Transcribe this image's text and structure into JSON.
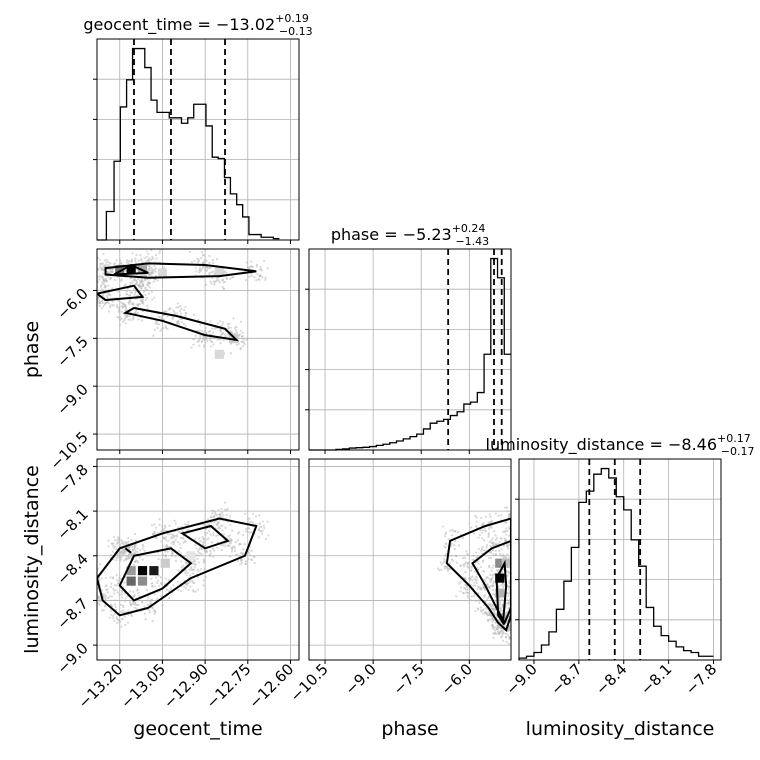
{
  "chart_data": {
    "type": "corner",
    "grid": true,
    "parameters": [
      {
        "name": "geocent_time",
        "xlabel": "geocent_time",
        "title_main": "geocent_time = −13.02",
        "title_plus": "+0.19",
        "title_minus": "−0.13",
        "median": -13.02,
        "lower_quantile": -13.15,
        "upper_quantile": -12.83,
        "range": [
          -13.28,
          -12.57
        ],
        "ticks": [
          -13.2,
          -13.05,
          -12.9,
          -12.75,
          -12.6
        ],
        "tick_labels": [
          "−13.20",
          "−13.05",
          "−12.90",
          "−12.75",
          "−12.60"
        ],
        "histogram": {
          "edges": [
            -13.28,
            -13.247,
            -13.22,
            -13.198,
            -13.176,
            -13.155,
            -13.133,
            -13.112,
            -13.09,
            -13.069,
            -13.047,
            -13.026,
            -13.004,
            -12.983,
            -12.961,
            -12.94,
            -12.918,
            -12.897,
            -12.875,
            -12.854,
            -12.832,
            -12.811,
            -12.789,
            -12.768,
            -12.746,
            -12.725,
            -12.703,
            -12.682,
            -12.66,
            -12.639
          ],
          "counts": [
            0,
            0.21,
            0.58,
            0.98,
            1.18,
            1.41,
            1.41,
            1.27,
            1.03,
            0.94,
            0.94,
            0.9,
            0.9,
            0.86,
            0.9,
            1.0,
            1.0,
            0.84,
            0.61,
            0.6,
            0.46,
            0.34,
            0.26,
            0.17,
            0.04,
            0.04,
            0.02,
            0.02,
            0.01
          ]
        }
      },
      {
        "name": "phase",
        "xlabel": "phase",
        "ylabel": "phase",
        "title_main": "phase = −5.23",
        "title_plus": "+0.24",
        "title_minus": "−1.43",
        "median": -5.23,
        "lower_quantile": -6.66,
        "upper_quantile": -4.99,
        "range": [
          -11.0,
          -4.7
        ],
        "ticks": [
          -10.5,
          -9.0,
          -7.5,
          -6.0
        ],
        "tick_labels": [
          "−10.5",
          "−9.0",
          "−7.5",
          "−6.0"
        ],
        "histogram": {
          "edges": [
            -11.0,
            -10.79,
            -10.58,
            -10.37,
            -10.16,
            -9.95,
            -9.74,
            -9.53,
            -9.32,
            -9.11,
            -8.9,
            -8.69,
            -8.48,
            -8.27,
            -8.06,
            -7.85,
            -7.64,
            -7.43,
            -7.22,
            -7.01,
            -6.8,
            -6.59,
            -6.38,
            -6.17,
            -5.96,
            -5.75,
            -5.54,
            -5.33,
            -5.12,
            -4.91,
            -4.7
          ],
          "counts": [
            0,
            0,
            0,
            0,
            0.003,
            0.006,
            0.01,
            0.012,
            0.014,
            0.018,
            0.024,
            0.03,
            0.038,
            0.047,
            0.058,
            0.07,
            0.083,
            0.11,
            0.14,
            0.15,
            0.16,
            0.18,
            0.2,
            0.24,
            0.25,
            0.3,
            0.5,
            1.0,
            0.9,
            0.5
          ]
        }
      },
      {
        "name": "luminosity_distance",
        "xlabel": "luminosity_distance",
        "ylabel": "luminosity_distance",
        "title_main": "luminosity_distance = −8.46",
        "title_plus": "+0.17",
        "title_minus": "−0.17",
        "median": -8.46,
        "lower_quantile": -8.63,
        "upper_quantile": -8.29,
        "range": [
          -9.1,
          -7.75
        ],
        "ticks": [
          -9.0,
          -8.7,
          -8.4,
          -8.1,
          -7.8
        ],
        "tick_labels": [
          "−9.0",
          "−8.7",
          "−8.4",
          "−8.1",
          "−7.8"
        ],
        "histogram": {
          "edges": [
            -9.1,
            -9.05,
            -9.0,
            -8.95,
            -8.9,
            -8.85,
            -8.8,
            -8.75,
            -8.7,
            -8.65,
            -8.6,
            -8.55,
            -8.5,
            -8.45,
            -8.4,
            -8.35,
            -8.3,
            -8.25,
            -8.2,
            -8.15,
            -8.1,
            -8.05,
            -8.0,
            -7.95,
            -7.9,
            -7.85,
            -7.8
          ],
          "counts": [
            0.01,
            0.02,
            0.04,
            0.08,
            0.15,
            0.27,
            0.42,
            0.6,
            0.84,
            0.9,
            0.99,
            1.02,
            0.97,
            0.87,
            0.8,
            0.64,
            0.5,
            0.28,
            0.18,
            0.13,
            0.1,
            0.07,
            0.05,
            0.04,
            0.02,
            0.02
          ]
        }
      }
    ],
    "pairs": [
      {
        "x": "geocent_time",
        "y": "phase",
        "density_cells": [
          {
            "x": -13.2,
            "y": -5.35,
            "level": 0.55
          },
          {
            "x": -13.16,
            "y": -5.35,
            "level": 1.0
          },
          {
            "x": -13.12,
            "y": -5.35,
            "level": 0.35
          },
          {
            "x": -13.05,
            "y": -5.45,
            "level": 0.15
          },
          {
            "x": -12.85,
            "y": -5.4,
            "level": 0.15
          },
          {
            "x": -12.8,
            "y": -7.5,
            "level": 0.2
          },
          {
            "x": -12.85,
            "y": -8.0,
            "level": 0.15
          }
        ],
        "contours": [
          [
            [
              -13.25,
              -5.3
            ],
            [
              -13.1,
              -5.15
            ],
            [
              -12.9,
              -5.2
            ],
            [
              -12.72,
              -5.4
            ],
            [
              -12.85,
              -5.55
            ],
            [
              -13.1,
              -5.6
            ],
            [
              -13.25,
              -5.5
            ]
          ],
          [
            [
              -13.22,
              -5.5
            ],
            [
              -13.16,
              -5.2
            ],
            [
              -13.1,
              -5.45
            ]
          ],
          [
            [
              -13.28,
              -6.1
            ],
            [
              -13.15,
              -5.85
            ],
            [
              -13.12,
              -6.2
            ],
            [
              -13.25,
              -6.3
            ]
          ],
          [
            [
              -13.15,
              -6.55
            ],
            [
              -13.0,
              -6.8
            ],
            [
              -12.83,
              -7.2
            ],
            [
              -12.79,
              -7.55
            ],
            [
              -12.9,
              -7.4
            ],
            [
              -13.05,
              -6.95
            ],
            [
              -13.18,
              -6.7
            ]
          ]
        ]
      },
      {
        "x": "geocent_time",
        "y": "luminosity_distance",
        "density_cells": [
          {
            "x": -13.16,
            "y": -8.5,
            "level": 0.4
          },
          {
            "x": -13.12,
            "y": -8.5,
            "level": 1.0
          },
          {
            "x": -13.08,
            "y": -8.5,
            "level": 0.9
          },
          {
            "x": -13.16,
            "y": -8.57,
            "level": 0.6
          },
          {
            "x": -13.12,
            "y": -8.57,
            "level": 0.45
          },
          {
            "x": -13.04,
            "y": -8.45,
            "level": 0.2
          },
          {
            "x": -12.95,
            "y": -8.4,
            "level": 0.1
          }
        ],
        "contours": [
          [
            [
              -13.28,
              -8.55
            ],
            [
              -13.2,
              -8.35
            ],
            [
              -13.05,
              -8.25
            ],
            [
              -12.85,
              -8.15
            ],
            [
              -12.72,
              -8.2
            ],
            [
              -12.76,
              -8.4
            ],
            [
              -12.95,
              -8.55
            ],
            [
              -13.1,
              -8.75
            ],
            [
              -13.2,
              -8.8
            ],
            [
              -13.26,
              -8.7
            ]
          ],
          [
            [
              -13.2,
              -8.6
            ],
            [
              -13.15,
              -8.4
            ],
            [
              -13.02,
              -8.35
            ],
            [
              -12.95,
              -8.45
            ],
            [
              -13.05,
              -8.62
            ],
            [
              -13.15,
              -8.7
            ]
          ],
          [
            [
              -12.98,
              -8.25
            ],
            [
              -12.88,
              -8.2
            ],
            [
              -12.82,
              -8.3
            ],
            [
              -12.9,
              -8.35
            ]
          ],
          [
            [
              -13.18,
              -8.35
            ],
            [
              -13.16,
              -8.38
            ]
          ]
        ]
      },
      {
        "x": "phase",
        "y": "luminosity_distance",
        "density_cells": [
          {
            "x": -5.05,
            "y": -8.55,
            "level": 1.0
          },
          {
            "x": -5.05,
            "y": -8.45,
            "level": 0.45
          },
          {
            "x": -4.85,
            "y": -8.45,
            "level": 0.25
          },
          {
            "x": -5.05,
            "y": -8.65,
            "level": 0.3
          }
        ],
        "contours": [
          [
            [
              -4.7,
              -8.15
            ],
            [
              -5.5,
              -8.2
            ],
            [
              -6.6,
              -8.3
            ],
            [
              -6.7,
              -8.45
            ],
            [
              -6.0,
              -8.6
            ],
            [
              -5.4,
              -8.75
            ],
            [
              -5.1,
              -8.85
            ],
            [
              -4.85,
              -8.9
            ],
            [
              -4.7,
              -8.8
            ]
          ],
          [
            [
              -4.7,
              -8.3
            ],
            [
              -5.3,
              -8.35
            ],
            [
              -5.9,
              -8.45
            ],
            [
              -5.5,
              -8.6
            ],
            [
              -5.15,
              -8.75
            ],
            [
              -4.9,
              -8.85
            ],
            [
              -4.7,
              -8.75
            ]
          ],
          [
            [
              -4.9,
              -8.45
            ],
            [
              -5.15,
              -8.55
            ],
            [
              -5.1,
              -8.8
            ],
            [
              -4.95,
              -8.85
            ],
            [
              -4.85,
              -8.6
            ]
          ]
        ]
      }
    ]
  }
}
